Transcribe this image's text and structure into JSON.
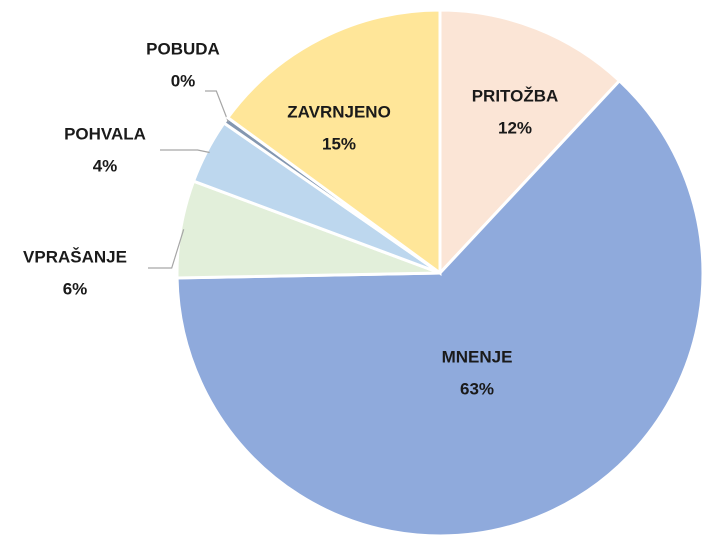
{
  "chart_data": {
    "type": "pie",
    "categories": [
      "PRITOŽBA",
      "MNENJE",
      "VPRAŠANJE",
      "POHVALA",
      "POBUDA",
      "ZAVRNJENO"
    ],
    "values": [
      12,
      63,
      6,
      4,
      0.4,
      15
    ],
    "value_labels": [
      "12%",
      "63%",
      "6%",
      "4%",
      "0%",
      "15%"
    ],
    "colors": [
      "#fbe5d6",
      "#8faadc",
      "#e2efda",
      "#bdd7ee",
      "#8497b0",
      "#ffe699"
    ]
  }
}
